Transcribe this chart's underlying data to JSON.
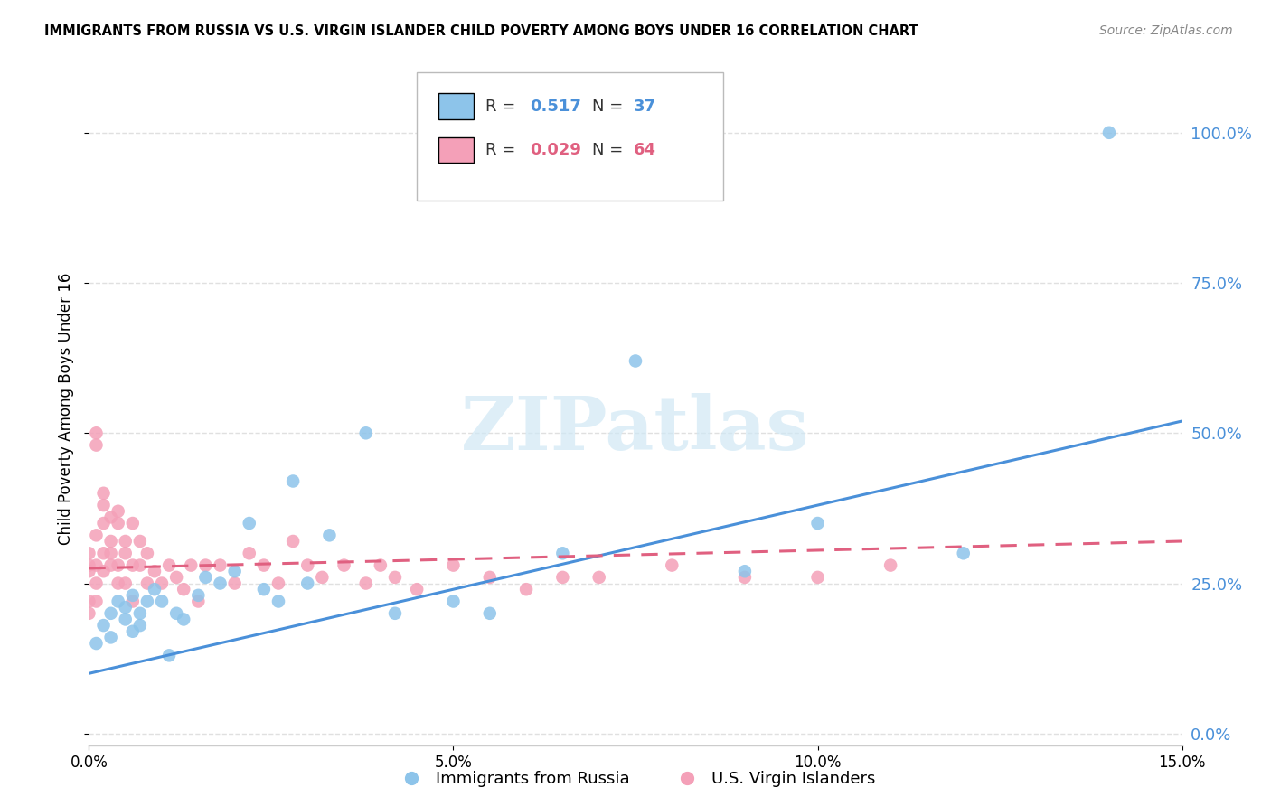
{
  "title": "IMMIGRANTS FROM RUSSIA VS U.S. VIRGIN ISLANDER CHILD POVERTY AMONG BOYS UNDER 16 CORRELATION CHART",
  "source": "Source: ZipAtlas.com",
  "ylabel": "Child Poverty Among Boys Under 16",
  "xlim": [
    0.0,
    0.15
  ],
  "ylim": [
    -0.02,
    1.1
  ],
  "xticks": [
    0.0,
    0.05,
    0.1,
    0.15
  ],
  "xticklabels": [
    "0.0%",
    "5.0%",
    "10.0%",
    "15.0%"
  ],
  "yticks": [
    0.0,
    0.25,
    0.5,
    0.75,
    1.0
  ],
  "yticklabels": [
    "0.0%",
    "25.0%",
    "50.0%",
    "75.0%",
    "100.0%"
  ],
  "blue_R": 0.517,
  "blue_N": 37,
  "pink_R": 0.029,
  "pink_N": 64,
  "blue_color": "#8dc4ea",
  "pink_color": "#f4a0b8",
  "blue_line_color": "#4a90d9",
  "pink_line_color": "#e06080",
  "watermark_color": "#d0e8f5",
  "grid_color": "#e0e0e0",
  "blue_x": [
    0.001,
    0.002,
    0.003,
    0.003,
    0.004,
    0.005,
    0.005,
    0.006,
    0.006,
    0.007,
    0.007,
    0.008,
    0.009,
    0.01,
    0.011,
    0.012,
    0.013,
    0.015,
    0.016,
    0.018,
    0.02,
    0.022,
    0.024,
    0.026,
    0.028,
    0.03,
    0.033,
    0.038,
    0.042,
    0.05,
    0.055,
    0.065,
    0.075,
    0.09,
    0.1,
    0.12,
    0.14
  ],
  "blue_y": [
    0.15,
    0.18,
    0.2,
    0.16,
    0.22,
    0.19,
    0.21,
    0.17,
    0.23,
    0.2,
    0.18,
    0.22,
    0.24,
    0.22,
    0.13,
    0.2,
    0.19,
    0.23,
    0.26,
    0.25,
    0.27,
    0.35,
    0.24,
    0.22,
    0.42,
    0.25,
    0.33,
    0.5,
    0.2,
    0.22,
    0.2,
    0.3,
    0.62,
    0.27,
    0.35,
    0.3,
    1.0
  ],
  "pink_x": [
    0.0,
    0.0,
    0.0,
    0.0,
    0.0,
    0.001,
    0.001,
    0.001,
    0.001,
    0.001,
    0.001,
    0.002,
    0.002,
    0.002,
    0.002,
    0.002,
    0.003,
    0.003,
    0.003,
    0.003,
    0.004,
    0.004,
    0.004,
    0.004,
    0.005,
    0.005,
    0.005,
    0.006,
    0.006,
    0.006,
    0.007,
    0.007,
    0.008,
    0.008,
    0.009,
    0.01,
    0.011,
    0.012,
    0.013,
    0.014,
    0.015,
    0.016,
    0.018,
    0.02,
    0.022,
    0.024,
    0.026,
    0.028,
    0.03,
    0.032,
    0.035,
    0.038,
    0.04,
    0.042,
    0.045,
    0.05,
    0.055,
    0.06,
    0.065,
    0.07,
    0.08,
    0.09,
    0.1,
    0.11
  ],
  "pink_y": [
    0.27,
    0.28,
    0.3,
    0.22,
    0.2,
    0.5,
    0.48,
    0.33,
    0.28,
    0.25,
    0.22,
    0.35,
    0.38,
    0.4,
    0.3,
    0.27,
    0.36,
    0.32,
    0.28,
    0.3,
    0.37,
    0.35,
    0.28,
    0.25,
    0.3,
    0.32,
    0.25,
    0.35,
    0.28,
    0.22,
    0.32,
    0.28,
    0.3,
    0.25,
    0.27,
    0.25,
    0.28,
    0.26,
    0.24,
    0.28,
    0.22,
    0.28,
    0.28,
    0.25,
    0.3,
    0.28,
    0.25,
    0.32,
    0.28,
    0.26,
    0.28,
    0.25,
    0.28,
    0.26,
    0.24,
    0.28,
    0.26,
    0.24,
    0.26,
    0.26,
    0.28,
    0.26,
    0.26,
    0.28
  ],
  "blue_line_x0": 0.0,
  "blue_line_y0": 0.1,
  "blue_line_x1": 0.15,
  "blue_line_y1": 0.52,
  "pink_line_x0": 0.0,
  "pink_line_y0": 0.275,
  "pink_line_x1": 0.15,
  "pink_line_y1": 0.32
}
